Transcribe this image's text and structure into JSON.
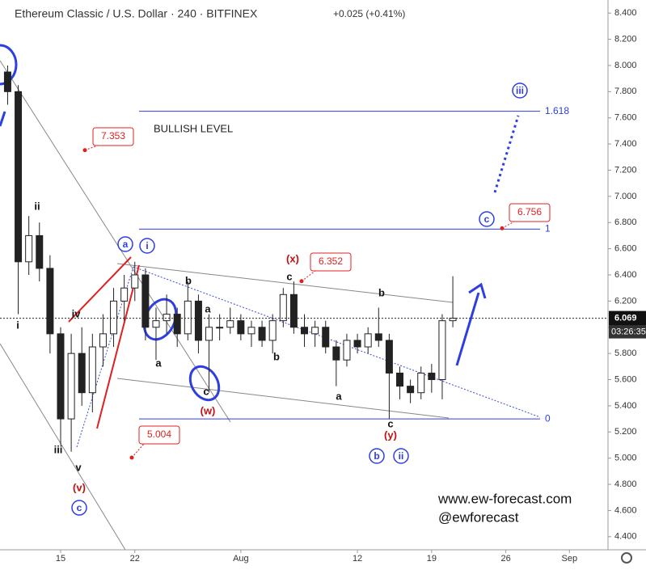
{
  "chart_data": {
    "type": "candlestick",
    "title": "Ethereum Classic / U.S. Dollar · 240 · BITFINEX",
    "change": "+0.025 (+0.41%)",
    "countdown": "03:26:35",
    "color": "#222222",
    "x": [
      -5,
      -4,
      -3,
      -2,
      -1,
      0,
      1,
      2,
      3,
      4,
      5,
      6,
      7,
      8,
      9,
      10,
      11,
      12,
      13,
      14,
      15,
      16,
      17,
      18,
      19,
      20,
      21,
      22,
      23,
      24,
      25,
      26,
      27,
      28,
      29,
      30,
      31,
      32,
      33,
      34,
      35,
      36,
      37
    ],
    "open": [
      7.95,
      7.8,
      6.5,
      6.7,
      6.45,
      5.95,
      5.3,
      5.8,
      5.5,
      5.85,
      5.95,
      6.2,
      6.3,
      6.4,
      6.0,
      6.05,
      6.1,
      5.95,
      6.2,
      5.9,
      6.0,
      6.0,
      6.05,
      5.95,
      6.0,
      5.9,
      6.05,
      6.25,
      6.0,
      5.95,
      6.0,
      5.85,
      5.75,
      5.9,
      5.85,
      5.95,
      5.9,
      5.65,
      5.55,
      5.5,
      5.65,
      5.6,
      6.05
    ],
    "high": [
      8.0,
      7.85,
      6.85,
      6.8,
      6.55,
      6.0,
      5.95,
      6.0,
      5.95,
      6.1,
      6.3,
      6.4,
      6.5,
      6.45,
      6.15,
      6.25,
      6.15,
      6.35,
      6.25,
      6.1,
      6.1,
      6.15,
      6.1,
      6.05,
      6.05,
      6.1,
      6.3,
      6.35,
      6.1,
      6.05,
      6.05,
      5.9,
      5.95,
      5.95,
      6.0,
      6.15,
      5.95,
      5.7,
      5.6,
      5.7,
      5.72,
      6.1,
      6.39
    ],
    "low": [
      7.7,
      6.1,
      6.4,
      6.35,
      5.8,
      5.1,
      5.05,
      5.4,
      5.35,
      5.7,
      5.85,
      6.05,
      6.2,
      5.9,
      5.75,
      5.95,
      5.85,
      5.9,
      5.8,
      5.5,
      5.9,
      5.95,
      5.9,
      5.85,
      5.85,
      5.8,
      6.0,
      5.95,
      5.85,
      5.85,
      5.8,
      5.55,
      5.7,
      5.8,
      5.8,
      5.85,
      5.3,
      5.45,
      5.42,
      5.45,
      5.5,
      5.45,
      6.0
    ],
    "close": [
      7.8,
      6.5,
      6.7,
      6.45,
      5.95,
      5.3,
      5.8,
      5.5,
      5.85,
      5.95,
      6.2,
      6.3,
      6.4,
      6.0,
      6.05,
      6.1,
      5.95,
      6.2,
      5.9,
      6.0,
      6.0,
      6.05,
      5.95,
      6.0,
      5.9,
      6.05,
      6.25,
      6.0,
      5.95,
      6.0,
      5.85,
      5.75,
      5.9,
      5.85,
      5.95,
      5.9,
      5.65,
      5.55,
      5.5,
      5.65,
      5.6,
      6.05,
      6.069
    ],
    "xlim": [
      -5.72,
      51.64
    ],
    "xticks": [
      {
        "value": 0,
        "label": "15"
      },
      {
        "value": 7,
        "label": "22"
      },
      {
        "value": 17,
        "label": "Aug"
      },
      {
        "value": 28,
        "label": "12"
      },
      {
        "value": 35,
        "label": "19"
      },
      {
        "value": 42,
        "label": "26"
      },
      {
        "value": 48,
        "label": "Sep"
      }
    ],
    "ylim": [
      4.3,
      8.5
    ],
    "yticks": [
      {
        "value": 4.4,
        "label": "4.400"
      },
      {
        "value": 4.6,
        "label": "4.600"
      },
      {
        "value": 4.8,
        "label": "4.800"
      },
      {
        "value": 5.0,
        "label": "5.000"
      },
      {
        "value": 5.2,
        "label": "5.200"
      },
      {
        "value": 5.4,
        "label": "5.400"
      },
      {
        "value": 5.6,
        "label": "5.600"
      },
      {
        "value": 5.8,
        "label": "5.800"
      },
      {
        "value": 6.0,
        "label": "6.000"
      },
      {
        "value": 6.2,
        "label": "6.200"
      },
      {
        "value": 6.4,
        "label": "6.400"
      },
      {
        "value": 6.6,
        "label": "6.600"
      },
      {
        "value": 6.8,
        "label": "6.800"
      },
      {
        "value": 7.0,
        "label": "7.000"
      },
      {
        "value": 7.2,
        "label": "7.200"
      },
      {
        "value": 7.4,
        "label": "7.400"
      },
      {
        "value": 7.6,
        "label": "7.600"
      },
      {
        "value": 7.8,
        "label": "7.800"
      },
      {
        "value": 8.0,
        "label": "8.000"
      },
      {
        "value": 8.2,
        "label": "8.200"
      },
      {
        "value": 8.4,
        "label": "8.400"
      }
    ],
    "fib_levels": [
      {
        "value": 7.65,
        "label": "1.618"
      },
      {
        "value": 6.75,
        "label": "1"
      },
      {
        "value": 5.3,
        "label": "0"
      }
    ],
    "price_labels": [
      7.353,
      6.352,
      5.004,
      6.756
    ],
    "level_note": "BULLISH LEVEL",
    "wave_labels": [
      "ii",
      "iii",
      "iv",
      "v",
      "i",
      "(v)",
      "c",
      "a",
      "i",
      "b",
      "a",
      "a",
      "c",
      "(w)",
      "(x)",
      "c",
      "b",
      "a",
      "b",
      "c",
      "(y)",
      "b",
      "ii",
      "c",
      "iii"
    ],
    "watermark": [
      "www.ew-forecast.com",
      "@ewforecast"
    ]
  }
}
